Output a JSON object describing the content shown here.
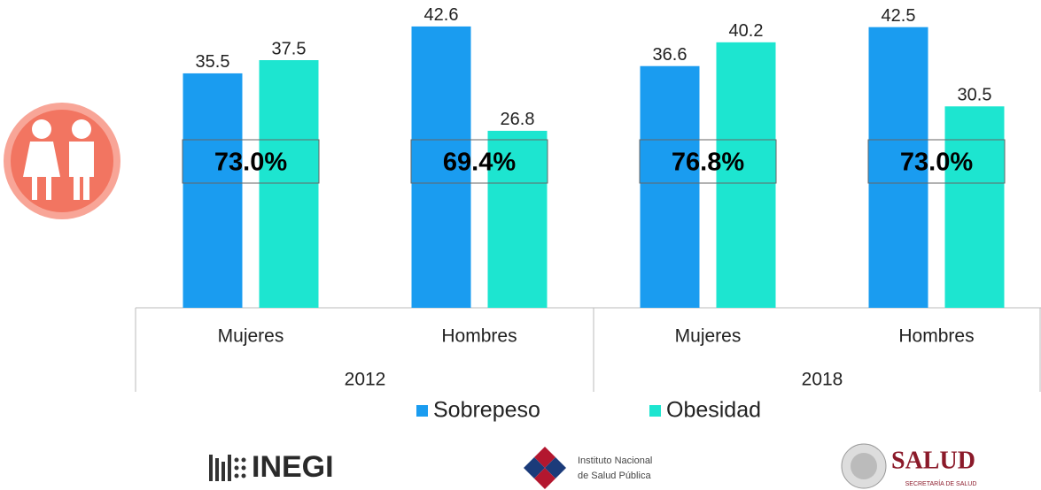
{
  "chart_data": {
    "type": "bar",
    "categories": [
      "Mujeres",
      "Hombres",
      "Mujeres",
      "Hombres"
    ],
    "groups": [
      "2012",
      "2018"
    ],
    "series": [
      {
        "name": "Sobrepeso",
        "color": "#1a9cf0",
        "values": [
          35.5,
          42.6,
          36.6,
          42.5
        ]
      },
      {
        "name": "Obesidad",
        "color": "#1de5d0",
        "values": [
          37.5,
          26.8,
          40.2,
          30.5
        ]
      }
    ],
    "totals": [
      "73.0%",
      "69.4%",
      "76.8%",
      "73.0%"
    ],
    "ylim": [
      0,
      45
    ]
  },
  "logos": {
    "inegi": "INEGI",
    "insp": [
      "Instituto Nacional",
      "de Salud Pública"
    ],
    "salud": "SALUD",
    "salud_sub": "SECRETARÍA DE SALUD"
  }
}
